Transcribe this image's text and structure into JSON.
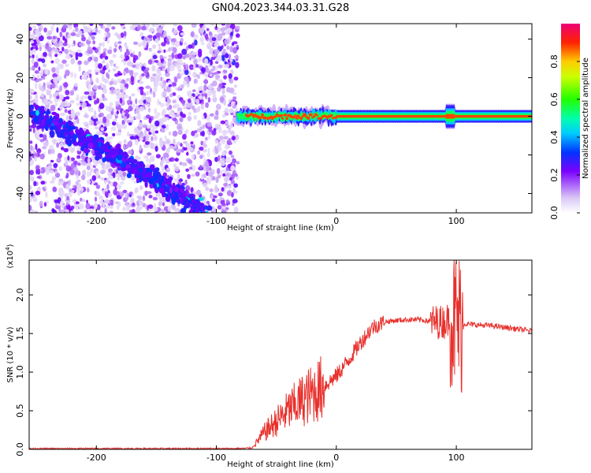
{
  "title": "GN04.2023.344.03.31.G28",
  "chart_data": [
    {
      "type": "heatmap",
      "xlabel": "Height of straight line (km)",
      "ylabel": "Frequency (Hz)",
      "xlim": [
        -256,
        163
      ],
      "ylim": [
        -50,
        48
      ],
      "x_ticks": [
        -200,
        -100,
        0,
        100
      ],
      "y_ticks": [
        -40,
        -20,
        0,
        20,
        40
      ],
      "colorbar": {
        "label": "Normalized spectral amplitude",
        "range": [
          0,
          1
        ],
        "ticks": [
          0.0,
          0.2,
          0.4,
          0.6,
          0.8
        ],
        "tick_labels": [
          "0.0",
          "0.2",
          "0.4",
          "0.6",
          "0.8"
        ]
      },
      "features": {
        "noise_region_x": [
          -256,
          -82
        ],
        "diagonal_trace": [
          [
            -256,
            2
          ],
          [
            -200,
            -15
          ],
          [
            -150,
            -33
          ],
          [
            -110,
            -50
          ]
        ],
        "signal_start_x": -82,
        "carrier_frequency": 0,
        "burst_x": 95
      }
    },
    {
      "type": "line",
      "xlabel": "Height of straight line (km)",
      "ylabel": "SNR (10 * v/v)",
      "y_multiplier": "(x10",
      "y_multiplier_exp": "4",
      "y_multiplier_close": ")",
      "xlim": [
        -256,
        163
      ],
      "ylim": [
        0,
        2.45
      ],
      "x_ticks": [
        -200,
        -100,
        0,
        100
      ],
      "y_ticks": [
        0.0,
        0.5,
        1.0,
        1.5,
        2.0
      ],
      "y_tick_labels": [
        "0.0",
        "0.5",
        "1.0",
        "1.5",
        "2.0"
      ],
      "color": "#e8302c",
      "series": [
        {
          "x": [
            -256,
            -200,
            -150,
            -100,
            -80,
            -70,
            -60,
            -50,
            -40,
            -30,
            -20,
            -10,
            0,
            10,
            20,
            30,
            40,
            50,
            60,
            70,
            80,
            90,
            95,
            100,
            105,
            110,
            120,
            130,
            140,
            150,
            163
          ],
          "values": [
            0.01,
            0.01,
            0.01,
            0.01,
            0.01,
            0.02,
            0.22,
            0.36,
            0.5,
            0.62,
            0.72,
            0.82,
            0.95,
            1.15,
            1.38,
            1.58,
            1.65,
            1.67,
            1.68,
            1.68,
            1.65,
            1.65,
            1.7,
            1.65,
            1.63,
            1.62,
            1.61,
            1.6,
            1.58,
            1.56,
            1.53
          ]
        }
      ]
    }
  ]
}
